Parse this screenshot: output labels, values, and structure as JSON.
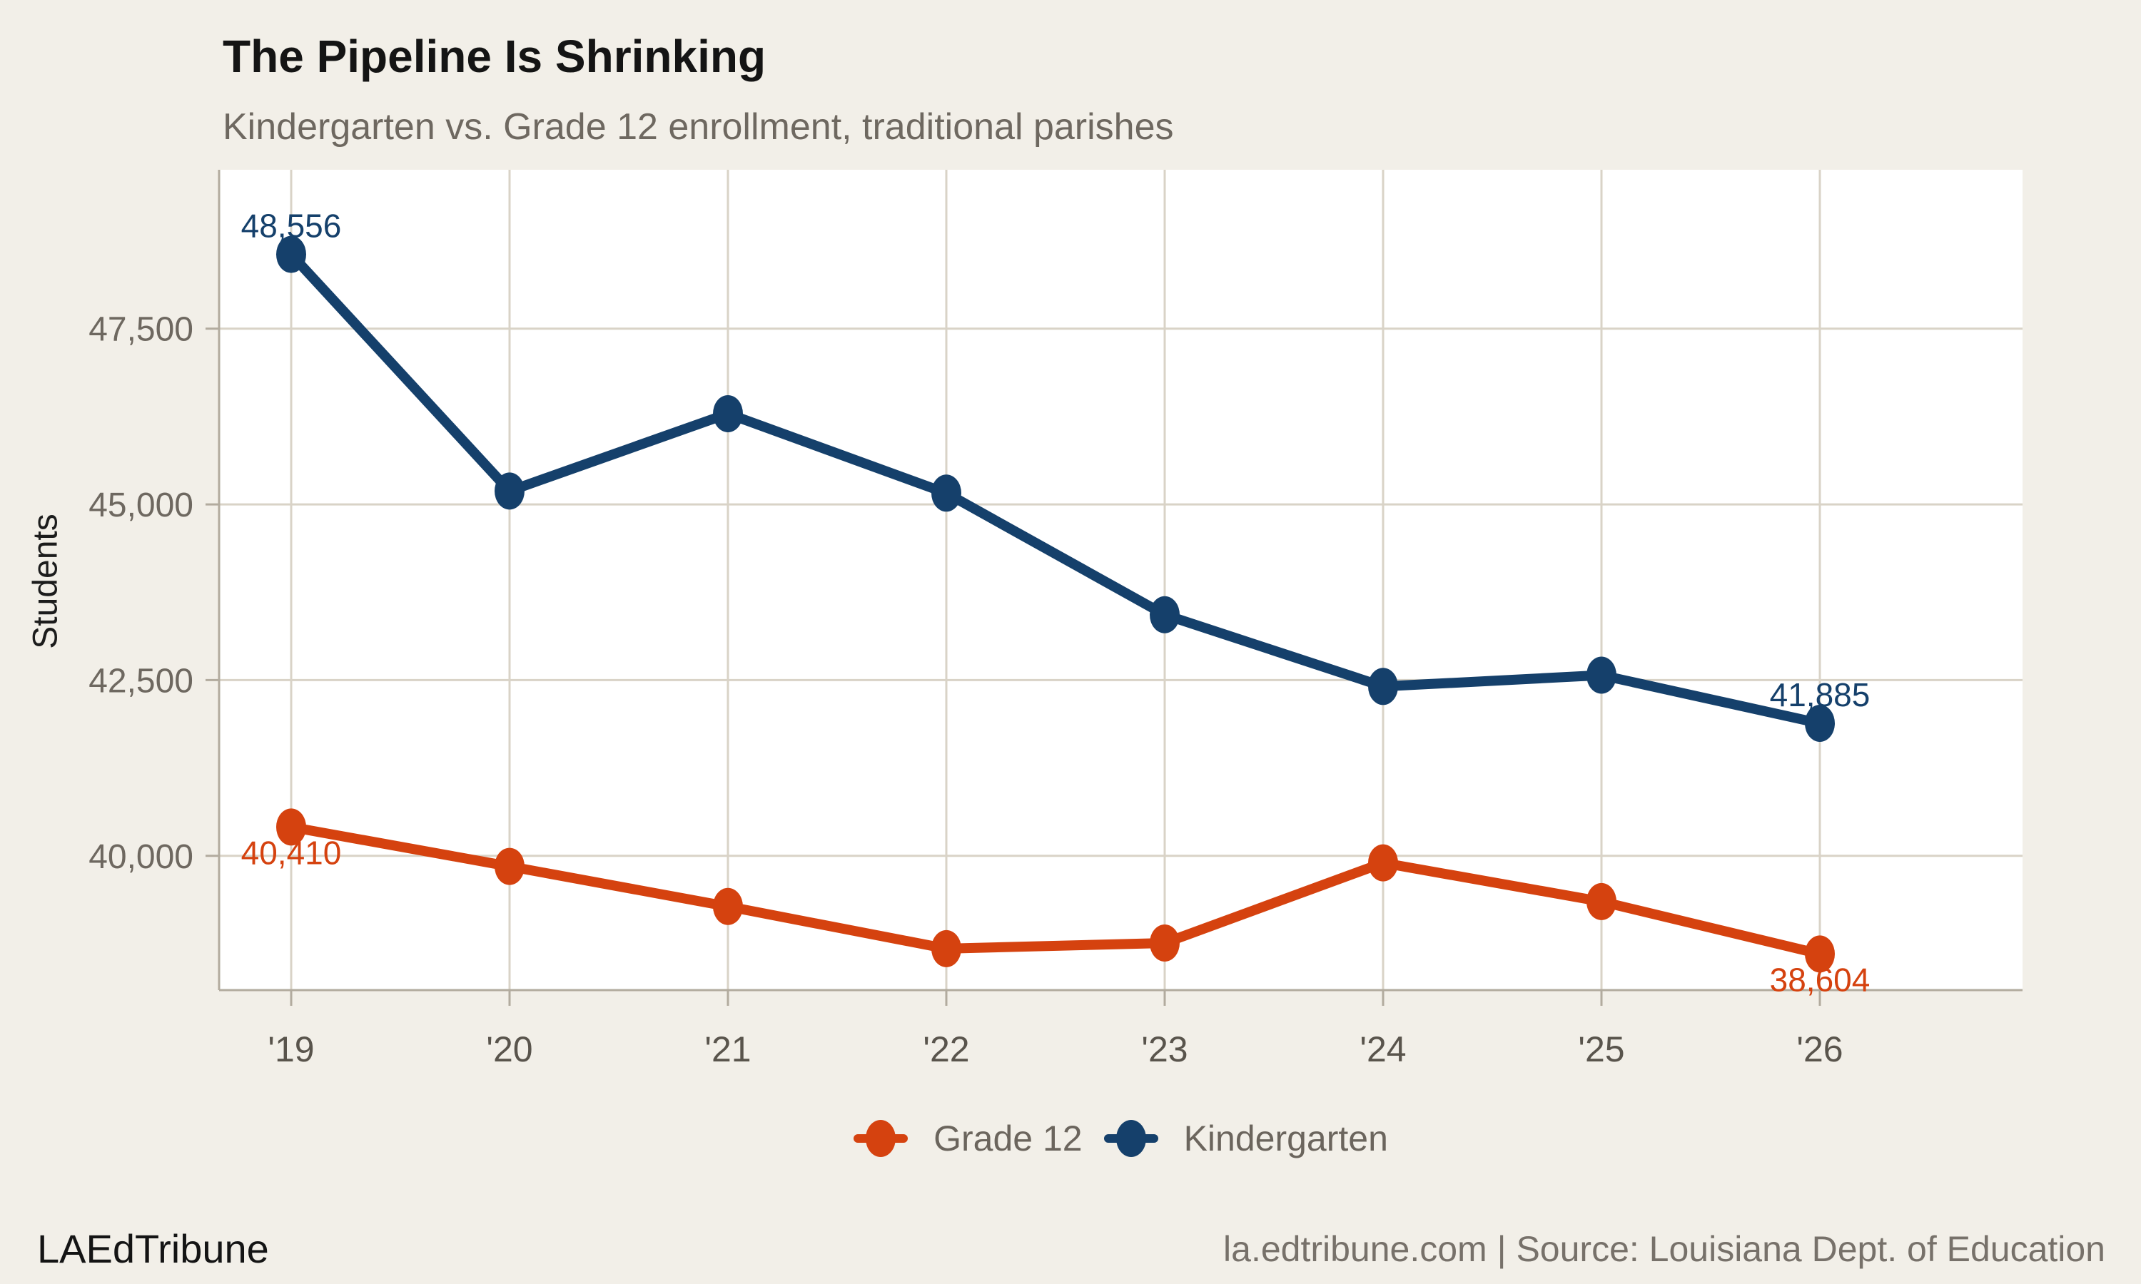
{
  "chart_data": {
    "type": "line",
    "title": "The Pipeline Is Shrinking",
    "subtitle": "Kindergarten vs. Grade 12 enrollment, traditional parishes",
    "ylabel": "Students",
    "xlabel": "",
    "categories": [
      "'19",
      "'20",
      "'21",
      "'22",
      "'23",
      "'24",
      "'25",
      "'26"
    ],
    "y_ticks": [
      40000,
      42500,
      45000,
      47500
    ],
    "y_tick_labels": [
      "40,000",
      "42,500",
      "45,000",
      "47,500"
    ],
    "ylim": [
      38090,
      49760
    ],
    "grid": true,
    "legend_position": "bottom",
    "series": [
      {
        "name": "Grade 12",
        "color": "#d5420f",
        "values": [
          40410,
          39850,
          39280,
          38680,
          38760,
          39900,
          39350,
          38604
        ],
        "point_labels": {
          "first": "40,410",
          "last": "38,604"
        },
        "label_side": "below"
      },
      {
        "name": "Kindergarten",
        "color": "#15406b",
        "values": [
          48556,
          45190,
          46290,
          45160,
          43430,
          42410,
          42570,
          41885
        ],
        "point_labels": {
          "first": "48,556",
          "last": "41,885"
        },
        "label_side": "above"
      }
    ]
  },
  "colors": {
    "background": "#f2efe8",
    "panel": "#ffffff",
    "grid": "#d9d3c7",
    "axis": "#b2ab9e",
    "accent_orange": "#d5420f",
    "accent_navy": "#15406b",
    "muted_text": "#6e6860",
    "xtick_text": "#59544c"
  },
  "footer": {
    "brand": "LAEdTribune",
    "source": "la.edtribune.com | Source: Louisiana Dept. of Education"
  }
}
